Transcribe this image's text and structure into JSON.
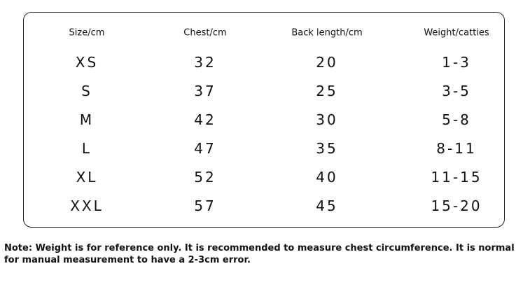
{
  "table": {
    "header": [
      "Size/cm",
      "Chest/cm",
      "Back length/cm",
      "Weight/catties"
    ],
    "rows": [
      [
        "XS",
        "32",
        "20",
        "1-3"
      ],
      [
        "S",
        "37",
        "25",
        "3-5"
      ],
      [
        "M",
        "42",
        "30",
        "5-8"
      ],
      [
        "L",
        "47",
        "35",
        "8-11"
      ],
      [
        "XL",
        "52",
        "40",
        "11-15"
      ],
      [
        "XXL",
        "57",
        "45",
        "15-20"
      ]
    ]
  },
  "note": "Note: Weight is for reference only. It is recommended to measure chest circumference. It is normal for manual measurement to have a 2-3cm error."
}
